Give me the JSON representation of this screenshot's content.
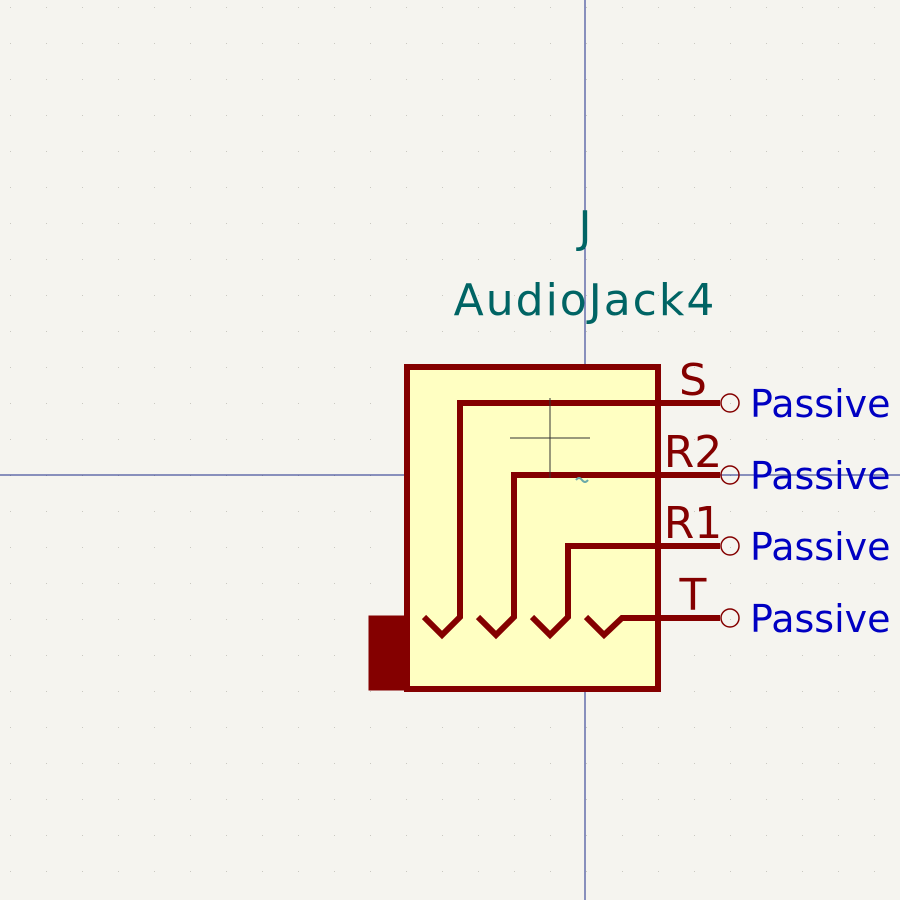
{
  "symbol": {
    "reference": "J",
    "value": "AudioJack4"
  },
  "pins": [
    {
      "name": "S",
      "type": "Passive"
    },
    {
      "name": "R2",
      "type": "Passive"
    },
    {
      "name": "R1",
      "type": "Passive"
    },
    {
      "name": "T",
      "type": "Passive"
    }
  ],
  "colors": {
    "background": "#f5f4ef",
    "grid_dot": "#c9c8c0",
    "axis": "#1a2a8a",
    "body_outline": "#840000",
    "body_fill": "#ffffc2",
    "pin_line": "#840000",
    "field_text": "#006464",
    "pin_type_text": "#0000c2"
  }
}
